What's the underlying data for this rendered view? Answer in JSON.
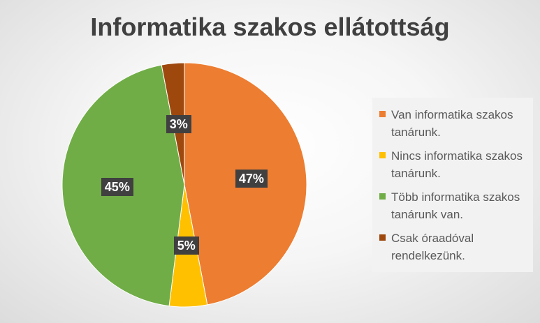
{
  "chart_data": {
    "type": "pie",
    "title": "Informatika szakos ellátottság",
    "categories": [
      "Van informatika szakos tanárunk.",
      "Nincs informatika szakos tanárunk.",
      "Több informatika szakos tanárunk van.",
      "Csak óraadóval rendelkezünk."
    ],
    "values": [
      47,
      5,
      45,
      3
    ],
    "labels": [
      "47%",
      "5%",
      "45%",
      "3%"
    ],
    "colors": [
      "#ED7D31",
      "#FFC000",
      "#70AD47",
      "#9E480E"
    ],
    "legend_position": "right"
  }
}
